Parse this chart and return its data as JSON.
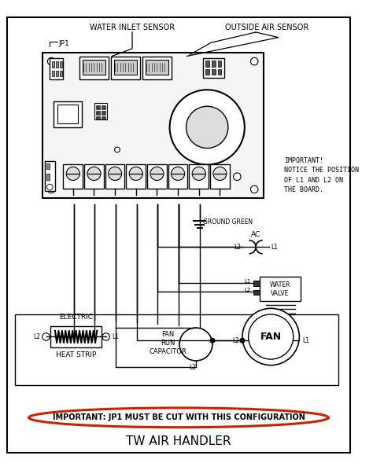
{
  "title": "TW AIR HANDLER",
  "background_color": "#ffffff",
  "fig_width": 4.74,
  "fig_height": 5.98,
  "dpi": 100,
  "labels": {
    "water_inlet_sensor": "WATER INLET SENSOR",
    "outside_air_sensor": "OUTSIDE AIR SENSOR",
    "jp1": "JP1",
    "important_notice": "IMPORTANT!\nNOTICE THE POSITION\nOF L1 AND L2 ON\nTHE BOARD.",
    "ground_green": "GROUND GREEN",
    "ac": "AC",
    "water_valve": "WATER\nVALVE",
    "electric": "ELECTRIC",
    "heat_strip": "HEAT STRIP",
    "fan_run_capacitor": "FAN\nRUN\nCAPACITOR",
    "fan": "FAN",
    "important_bottom": "IMPORTANT: JP1 MUST BE CUT WITH THIS CONFIGURATION",
    "l1": "L1",
    "l2": "L2"
  },
  "colors": {
    "line": "#000000",
    "text": "#000000",
    "red_ellipse": "#cc2200",
    "white": "#ffffff",
    "board_fill": "#f5f5f5",
    "light_gray": "#dddddd"
  }
}
